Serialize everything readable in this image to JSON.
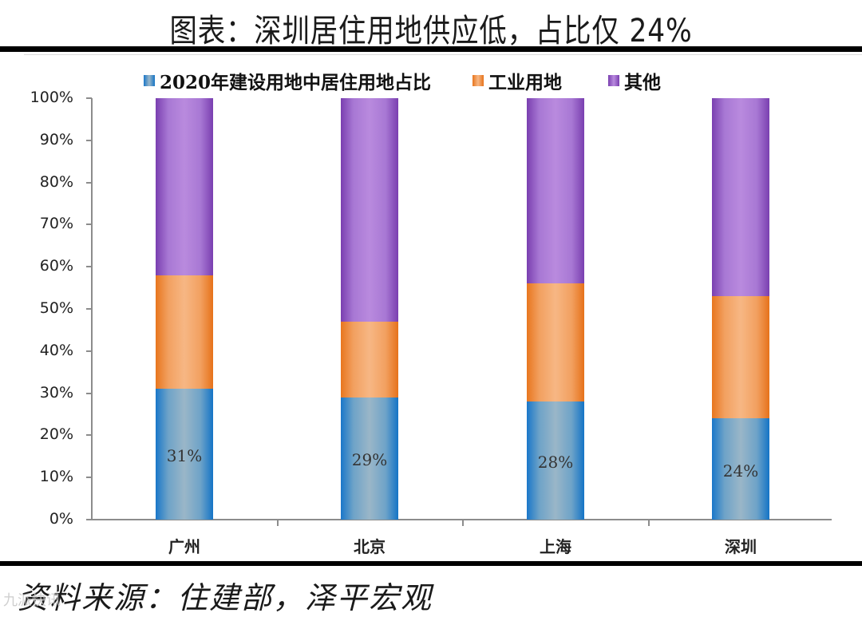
{
  "header": {
    "title": "图表：深圳居住用地供应低，占比仅 24%"
  },
  "legend": {
    "items": [
      {
        "label": "2020年建设用地中居住用地占比",
        "color": "#4a8fc8"
      },
      {
        "label": "工业用地",
        "color": "#f08a3a"
      },
      {
        "label": "其他",
        "color": "#9a5cc8"
      }
    ]
  },
  "axes": {
    "y_ticks": [
      "0%",
      "10%",
      "20%",
      "30%",
      "40%",
      "50%",
      "60%",
      "70%",
      "80%",
      "90%",
      "100%"
    ]
  },
  "categories": [
    "广州",
    "北京",
    "上海",
    "深圳"
  ],
  "bar_labels": [
    "31%",
    "29%",
    "28%",
    "24%"
  ],
  "footer": {
    "source": "资料来源：住建部，泽平宏观",
    "watermark": "九派快讯"
  },
  "chart_data": {
    "type": "bar",
    "stacked": true,
    "title": "图表：深圳居住用地供应低，占比仅 24%",
    "xlabel": "",
    "ylabel": "",
    "ylim": [
      0,
      100
    ],
    "y_tick_format": "percent",
    "grid": false,
    "legend_position": "top",
    "categories": [
      "广州",
      "北京",
      "上海",
      "深圳"
    ],
    "series": [
      {
        "name": "2020年建设用地中居住用地占比",
        "values": [
          31,
          29,
          28,
          24
        ],
        "color": "#4a8fc8"
      },
      {
        "name": "工业用地",
        "values": [
          27,
          18,
          28,
          29
        ],
        "color": "#f08a3a"
      },
      {
        "name": "其他",
        "values": [
          42,
          53,
          44,
          47
        ],
        "color": "#9a5cc8"
      }
    ],
    "annotations": [
      "31%",
      "29%",
      "28%",
      "24%"
    ],
    "source": "资料来源：住建部，泽平宏观"
  }
}
